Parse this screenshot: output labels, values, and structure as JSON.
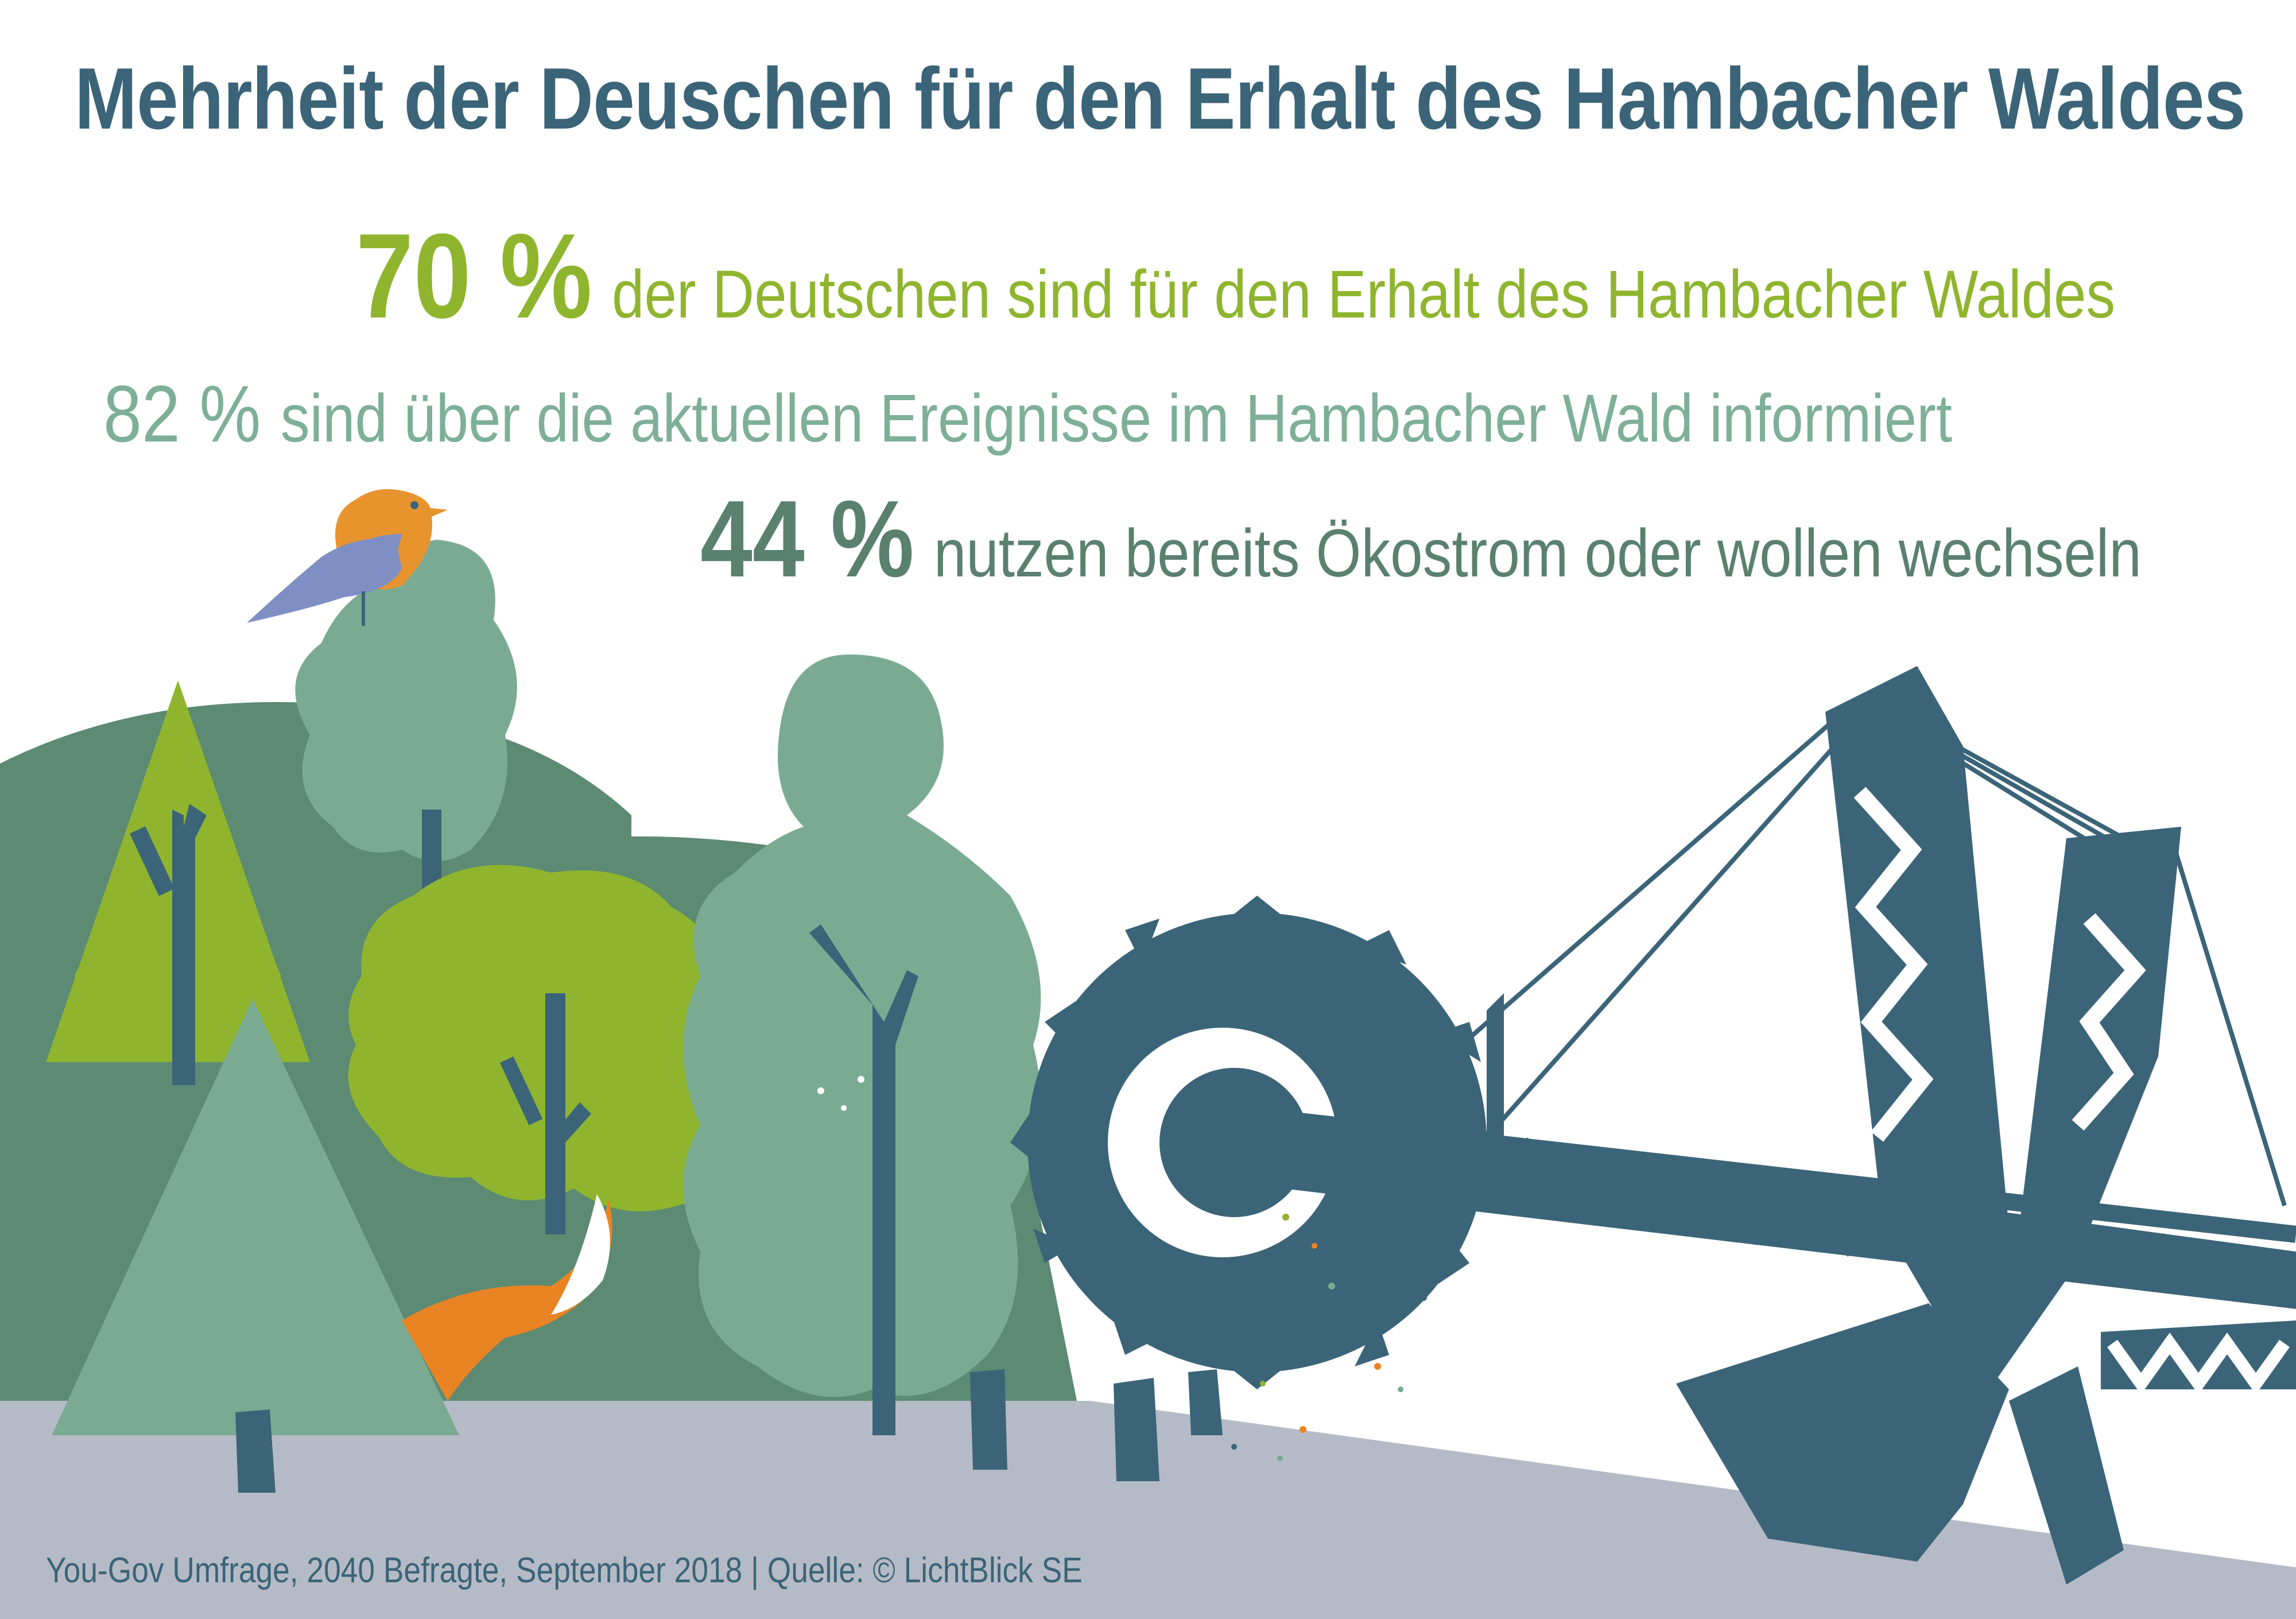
{
  "title": "Mehrheit der Deuschen für den Erhalt des Hambacher Waldes",
  "stats": [
    {
      "percent": "70 %",
      "label": "der Deutschen sind für den Erhalt des Hambacher Waldes",
      "color": "#8fb52e"
    },
    {
      "percent": "82 %",
      "label": "sind über die aktuellen Ereignisse im Hambacher Wald informiert",
      "color": "#7eaf98"
    },
    {
      "percent": "44 %",
      "label": "nutzen bereits Ökostrom oder wollen wechseln",
      "color": "#5a8070"
    }
  ],
  "source": "You-Gov Umfrage, 2040 Befragte, September 2018 | Quelle: © LichtBlick SE",
  "colors": {
    "title": "#3b6478",
    "excavator": "#3b6478",
    "hill_dark": "#5c8a73",
    "tree_light_green": "#8fb52e",
    "tree_sage": "#7aab92",
    "ground": "#b5bbc6",
    "fox": "#e88424",
    "bird_orange": "#e8942e",
    "bird_blue": "#7f8fc4"
  },
  "icons": [
    "bird-icon",
    "fox-icon",
    "pine-tree-icon",
    "deciduous-tree-icon",
    "bucket-wheel-excavator-icon",
    "tree-stump-icon"
  ]
}
